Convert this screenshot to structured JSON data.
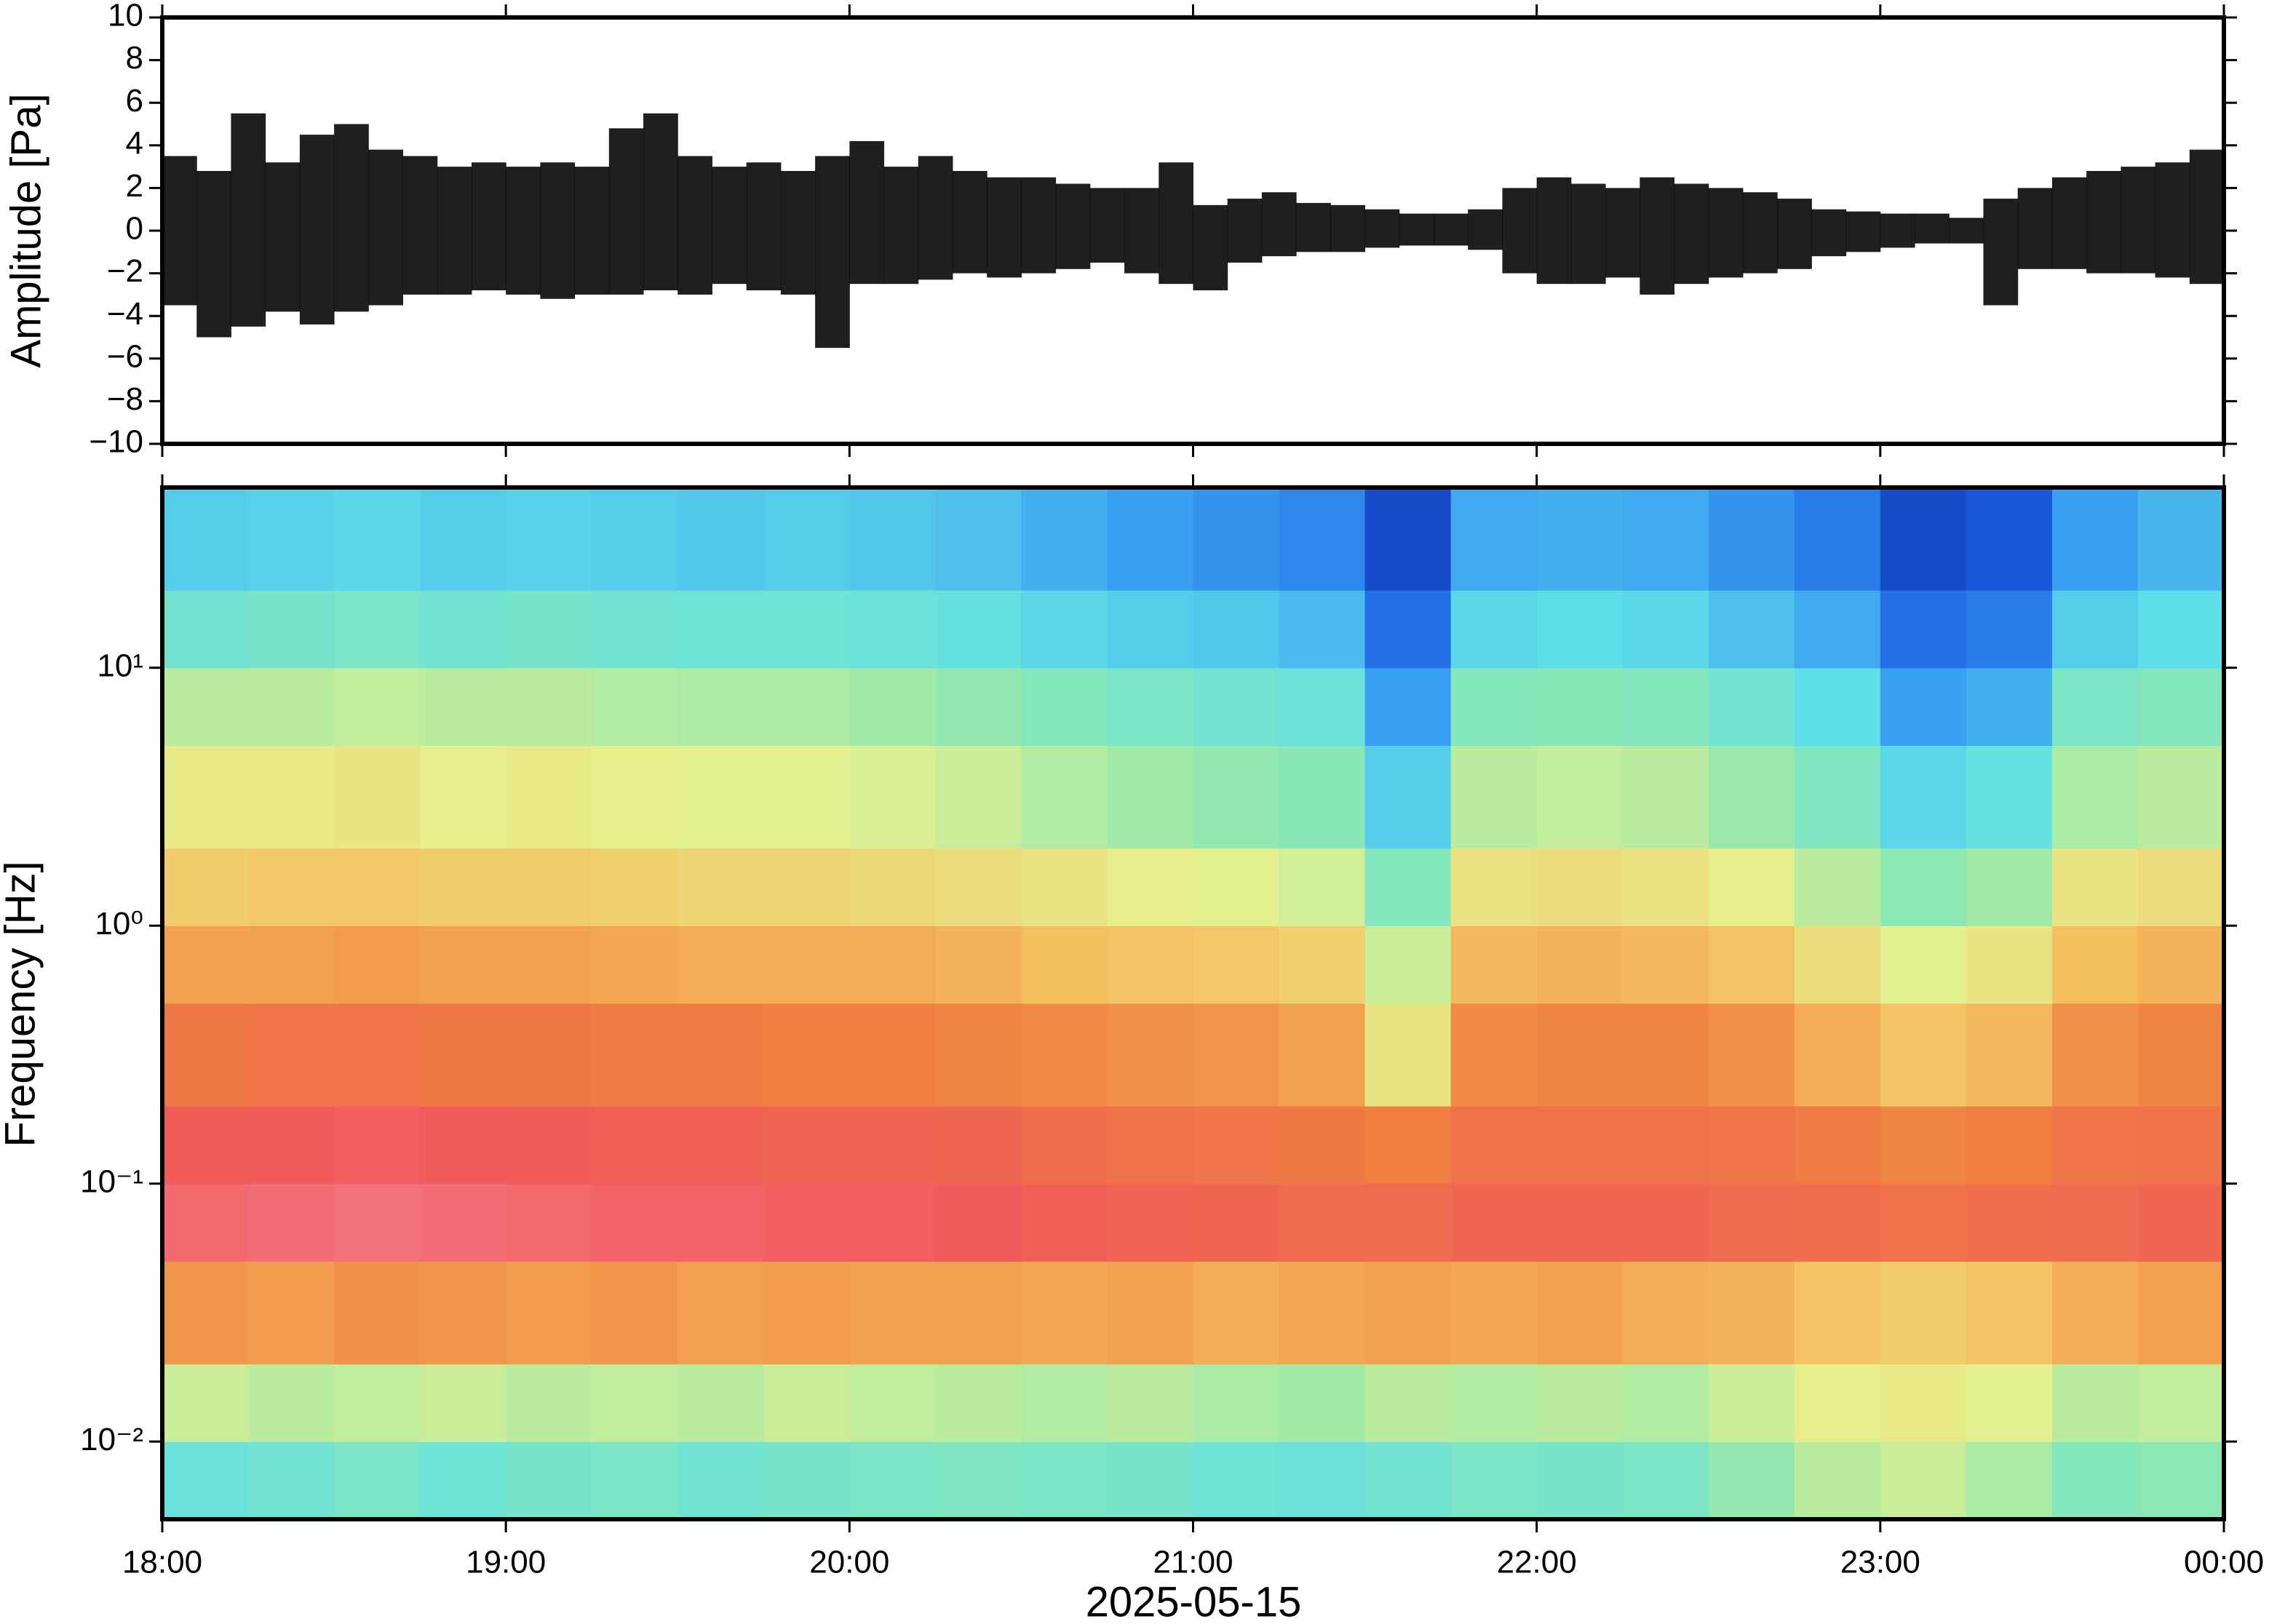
{
  "chart_data": [
    {
      "type": "envelope",
      "ylabel": "Amplitude [Pa]",
      "color": "#000000",
      "xlim": [
        18,
        24
      ],
      "xticks": [
        18,
        19,
        20,
        21,
        22,
        23,
        24
      ],
      "ylim": [
        -10,
        10
      ],
      "yticks": [
        10,
        8,
        6,
        4,
        2,
        0,
        {
          "value": -2,
          "label": "−2"
        },
        {
          "value": -4,
          "label": "−4"
        },
        {
          "value": -6,
          "label": "−6"
        },
        {
          "value": -8,
          "label": "−8"
        },
        {
          "value": -10,
          "label": "−10"
        }
      ],
      "x": [
        18.05,
        18.15,
        18.25,
        18.35,
        18.45,
        18.55,
        18.65,
        18.75,
        18.85,
        18.95,
        19.05,
        19.15,
        19.25,
        19.35,
        19.45,
        19.55,
        19.65,
        19.75,
        19.85,
        19.95,
        20.05,
        20.15,
        20.25,
        20.35,
        20.45,
        20.55,
        20.65,
        20.75,
        20.85,
        20.95,
        21.05,
        21.15,
        21.25,
        21.35,
        21.45,
        21.55,
        21.65,
        21.75,
        21.85,
        21.95,
        22.05,
        22.15,
        22.25,
        22.35,
        22.45,
        22.55,
        22.65,
        22.75,
        22.85,
        22.95,
        23.05,
        23.15,
        23.25,
        23.35,
        23.45,
        23.55,
        23.65,
        23.75,
        23.85,
        23.95
      ],
      "upper": [
        3.5,
        2.8,
        5.5,
        3.2,
        4.5,
        5.0,
        3.8,
        3.5,
        3.0,
        3.2,
        3.0,
        3.2,
        3.0,
        4.8,
        5.5,
        3.5,
        3.0,
        3.2,
        2.8,
        3.5,
        4.2,
        3.0,
        3.5,
        2.8,
        2.5,
        2.5,
        2.2,
        2.0,
        2.0,
        3.2,
        1.2,
        1.5,
        1.8,
        1.3,
        1.2,
        1.0,
        0.8,
        0.8,
        1.0,
        2.0,
        2.5,
        2.2,
        2.0,
        2.5,
        2.2,
        2.0,
        1.8,
        1.5,
        1.0,
        0.9,
        0.8,
        0.8,
        0.6,
        1.5,
        2.0,
        2.5,
        2.8,
        3.0,
        3.2,
        3.8
      ],
      "lower": [
        -3.5,
        -5.0,
        -4.5,
        -3.8,
        -4.4,
        -3.8,
        -3.5,
        -3.0,
        -3.0,
        -2.8,
        -3.0,
        -3.2,
        -3.0,
        -3.0,
        -2.8,
        -3.0,
        -2.5,
        -2.8,
        -3.0,
        -5.5,
        -2.5,
        -2.5,
        -2.3,
        -2.0,
        -2.2,
        -2.0,
        -1.8,
        -1.5,
        -2.0,
        -2.5,
        -2.8,
        -1.5,
        -1.2,
        -1.0,
        -1.0,
        -0.8,
        -0.7,
        -0.7,
        -0.9,
        -2.0,
        -2.5,
        -2.5,
        -2.2,
        -3.0,
        -2.5,
        -2.2,
        -2.0,
        -1.8,
        -1.2,
        -1.0,
        -0.8,
        -0.6,
        -0.6,
        -3.5,
        -1.8,
        -1.8,
        -2.0,
        -2.0,
        -2.2,
        -2.5
      ]
    },
    {
      "type": "spectrogram",
      "ylabel": "Frequency [Hz]",
      "xlabel": "2025-05-15",
      "xlim": [
        18,
        24
      ],
      "xticks": [
        {
          "value": 18,
          "label": "18:00"
        },
        {
          "value": 19,
          "label": "19:00"
        },
        {
          "value": 20,
          "label": "20:00"
        },
        {
          "value": 21,
          "label": "21:00"
        },
        {
          "value": 22,
          "label": "22:00"
        },
        {
          "value": 23,
          "label": "23:00"
        },
        {
          "value": 24,
          "label": "00:00"
        }
      ],
      "ylog": true,
      "ylim": [
        0.005,
        50
      ],
      "yticks": [
        {
          "value": 10,
          "label": "10¹"
        },
        {
          "value": 1,
          "label": "10⁰"
        },
        {
          "value": 0.1,
          "label": "10⁻¹"
        },
        {
          "value": 0.01,
          "label": "10⁻²"
        }
      ],
      "clim": [
        0,
        1
      ],
      "colormap": [
        "#0a1a8c",
        "#1a5fe0",
        "#3aa0f0",
        "#5ee0e8",
        "#8ee8b0",
        "#e6f08e",
        "#f5c060",
        "#f08040",
        "#f05a5a",
        "#f890a0"
      ],
      "time_bins": [
        18,
        18.25,
        18.5,
        18.75,
        19,
        19.25,
        19.5,
        19.75,
        20,
        20.25,
        20.5,
        20.75,
        21,
        21.25,
        21.5,
        21.75,
        22,
        22.25,
        22.5,
        22.75,
        23,
        23.25,
        23.5,
        23.75,
        24
      ],
      "freq_bins": [
        0.005,
        0.01,
        0.02,
        0.05,
        0.1,
        0.2,
        0.5,
        1,
        2,
        5,
        10,
        20,
        50
      ],
      "power": [
        [
          0.36,
          0.38,
          0.4,
          0.37,
          0.39,
          0.4,
          0.38,
          0.39,
          0.4,
          0.41,
          0.4,
          0.39,
          0.37,
          0.36,
          0.38,
          0.4,
          0.39,
          0.4,
          0.45,
          0.5,
          0.52,
          0.48,
          0.42,
          0.44
        ],
        [
          0.52,
          0.5,
          0.51,
          0.52,
          0.5,
          0.51,
          0.5,
          0.52,
          0.51,
          0.5,
          0.49,
          0.5,
          0.48,
          0.47,
          0.5,
          0.49,
          0.5,
          0.49,
          0.52,
          0.56,
          0.57,
          0.55,
          0.5,
          0.51
        ],
        [
          0.74,
          0.73,
          0.75,
          0.74,
          0.73,
          0.74,
          0.72,
          0.73,
          0.72,
          0.72,
          0.71,
          0.72,
          0.7,
          0.71,
          0.72,
          0.71,
          0.72,
          0.7,
          0.69,
          0.66,
          0.64,
          0.66,
          0.7,
          0.72
        ],
        [
          0.92,
          0.93,
          0.94,
          0.93,
          0.92,
          0.91,
          0.91,
          0.9,
          0.9,
          0.89,
          0.87,
          0.86,
          0.85,
          0.84,
          0.84,
          0.85,
          0.85,
          0.85,
          0.84,
          0.83,
          0.82,
          0.83,
          0.84,
          0.85
        ],
        [
          0.88,
          0.89,
          0.9,
          0.89,
          0.88,
          0.87,
          0.87,
          0.86,
          0.86,
          0.85,
          0.83,
          0.82,
          0.81,
          0.8,
          0.78,
          0.82,
          0.82,
          0.82,
          0.81,
          0.79,
          0.77,
          0.78,
          0.81,
          0.82
        ],
        [
          0.8,
          0.81,
          0.81,
          0.8,
          0.8,
          0.79,
          0.79,
          0.78,
          0.78,
          0.77,
          0.76,
          0.75,
          0.74,
          0.72,
          0.58,
          0.76,
          0.77,
          0.77,
          0.75,
          0.7,
          0.66,
          0.68,
          0.75,
          0.77
        ],
        [
          0.72,
          0.72,
          0.73,
          0.72,
          0.72,
          0.71,
          0.7,
          0.7,
          0.7,
          0.69,
          0.67,
          0.66,
          0.65,
          0.63,
          0.52,
          0.68,
          0.69,
          0.68,
          0.66,
          0.6,
          0.55,
          0.58,
          0.67,
          0.69
        ],
        [
          0.64,
          0.65,
          0.65,
          0.64,
          0.64,
          0.63,
          0.62,
          0.62,
          0.61,
          0.6,
          0.58,
          0.56,
          0.55,
          0.53,
          0.42,
          0.59,
          0.6,
          0.59,
          0.56,
          0.5,
          0.44,
          0.47,
          0.58,
          0.6
        ],
        [
          0.57,
          0.57,
          0.58,
          0.56,
          0.57,
          0.56,
          0.55,
          0.55,
          0.54,
          0.52,
          0.49,
          0.47,
          0.45,
          0.43,
          0.3,
          0.5,
          0.51,
          0.5,
          0.46,
          0.41,
          0.32,
          0.35,
          0.48,
          0.5
        ],
        [
          0.5,
          0.5,
          0.51,
          0.5,
          0.5,
          0.49,
          0.48,
          0.48,
          0.47,
          0.45,
          0.42,
          0.4,
          0.38,
          0.36,
          0.22,
          0.42,
          0.43,
          0.42,
          0.38,
          0.33,
          0.22,
          0.25,
          0.4,
          0.42
        ],
        [
          0.38,
          0.39,
          0.4,
          0.38,
          0.39,
          0.38,
          0.37,
          0.37,
          0.36,
          0.35,
          0.32,
          0.3,
          0.29,
          0.27,
          0.14,
          0.32,
          0.33,
          0.32,
          0.28,
          0.24,
          0.14,
          0.16,
          0.3,
          0.33
        ],
        [
          0.3,
          0.31,
          0.32,
          0.3,
          0.31,
          0.3,
          0.29,
          0.3,
          0.29,
          0.28,
          0.25,
          0.22,
          0.2,
          0.18,
          0.08,
          0.24,
          0.25,
          0.24,
          0.2,
          0.16,
          0.08,
          0.1,
          0.22,
          0.26
        ]
      ]
    }
  ]
}
